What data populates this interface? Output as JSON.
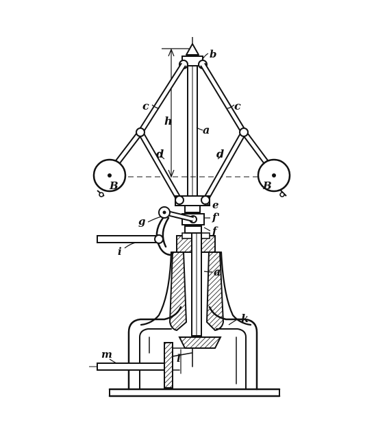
{
  "figure": {
    "labels": {
      "b": "b",
      "c_left": "c",
      "c_right": "c",
      "h": "h",
      "a_upper": "a",
      "d_left": "d",
      "d_right": "d",
      "B_left": "B",
      "B_right": "B",
      "e": "e",
      "f_prime": "f'",
      "f": "f",
      "g": "g",
      "i": "i",
      "a_lower": "a",
      "k": "k",
      "m": "m",
      "l": "l"
    }
  }
}
